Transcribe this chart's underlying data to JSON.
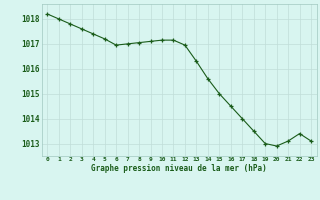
{
  "x": [
    0,
    1,
    2,
    3,
    4,
    5,
    6,
    7,
    8,
    9,
    10,
    11,
    12,
    13,
    14,
    15,
    16,
    17,
    18,
    19,
    20,
    21,
    22,
    23
  ],
  "y": [
    1018.2,
    1018.0,
    1017.8,
    1017.6,
    1017.4,
    1017.2,
    1016.95,
    1017.0,
    1017.05,
    1017.1,
    1017.15,
    1017.15,
    1016.95,
    1016.3,
    1015.6,
    1015.0,
    1014.5,
    1014.0,
    1013.5,
    1013.0,
    1012.9,
    1013.1,
    1013.4,
    1013.1
  ],
  "line_color": "#1a5c1a",
  "marker_color": "#1a5c1a",
  "bg_color": "#d8f5f0",
  "grid_color": "#c0ddd8",
  "spine_color": "#a0c8c0",
  "xlabel": "Graphe pression niveau de la mer (hPa)",
  "xlabel_color": "#1a5c1a",
  "tick_color": "#1a5c1a",
  "ylim_min": 1012.5,
  "ylim_max": 1018.6,
  "yticks": [
    1013,
    1014,
    1015,
    1016,
    1017,
    1018
  ],
  "xticks": [
    0,
    1,
    2,
    3,
    4,
    5,
    6,
    7,
    8,
    9,
    10,
    11,
    12,
    13,
    14,
    15,
    16,
    17,
    18,
    19,
    20,
    21,
    22,
    23
  ]
}
